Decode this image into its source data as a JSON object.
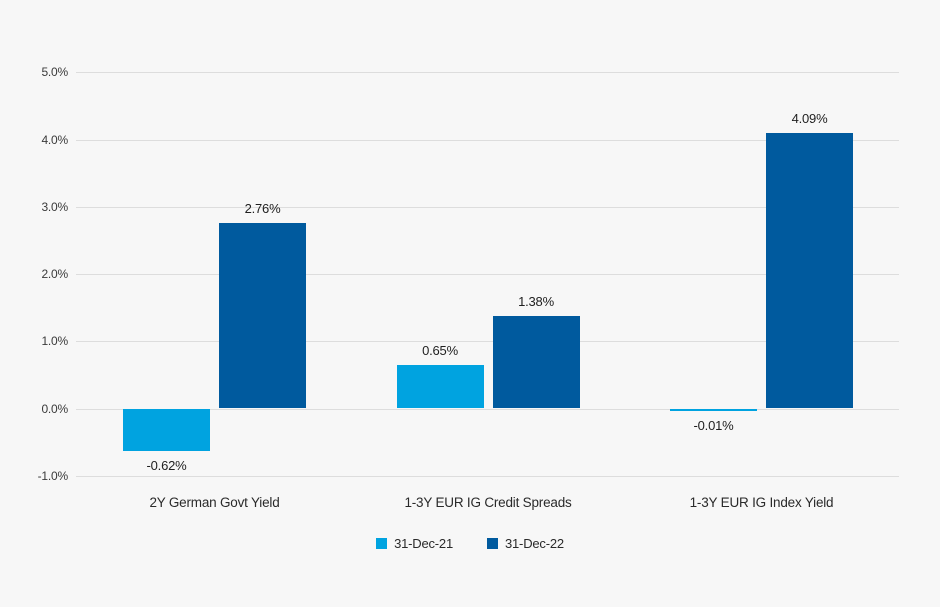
{
  "colors": {
    "background": "#f7f7f7",
    "gridline": "#dddddd",
    "text": "#1f1f1f",
    "axis_text": "#3a3a3a",
    "series_light_blue": "#00a3e0",
    "series_dark_blue": "#005a9e"
  },
  "chart_data": {
    "type": "bar",
    "title": "",
    "xlabel": "",
    "ylabel": "",
    "categories": [
      "2Y German Govt Yield",
      "1-3Y EUR IG Credit Spreads",
      "1-3Y EUR IG Index Yield"
    ],
    "series": [
      {
        "name": "31-Dec-21",
        "color": "#00a3e0",
        "values": [
          -0.62,
          0.65,
          -0.01
        ]
      },
      {
        "name": "31-Dec-22",
        "color": "#005a9e",
        "values": [
          2.76,
          1.38,
          4.09
        ]
      }
    ],
    "value_labels": [
      [
        "-0.62%",
        "0.65%",
        "-0.01%"
      ],
      [
        "2.76%",
        "1.38%",
        "4.09%"
      ]
    ],
    "y_axis": {
      "min": -1.0,
      "max": 5.0,
      "step": 1.0,
      "unit": "%",
      "tick_labels": [
        "5.0%",
        "4.0%",
        "3.0%",
        "2.0%",
        "1.0%",
        "0.0%",
        "-1.0%"
      ]
    },
    "grid": true,
    "legend_position": "bottom"
  }
}
